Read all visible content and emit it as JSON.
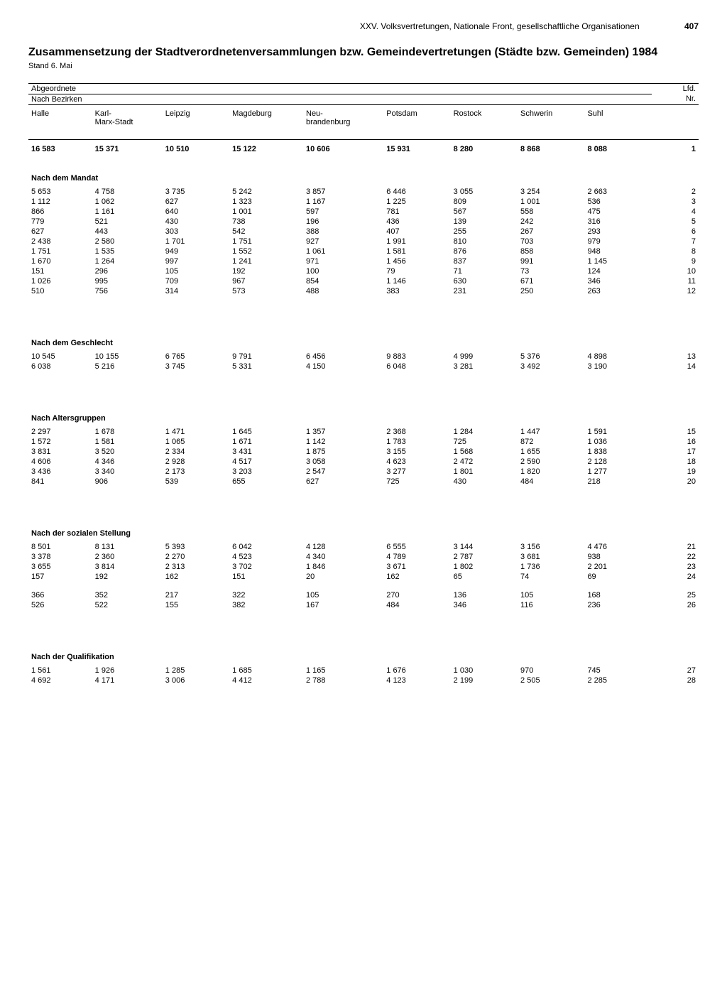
{
  "header": {
    "chapter": "XXV. Volksvertretungen, Nationale Front, gesellschaftliche Organisationen",
    "page": "407"
  },
  "title": "Zusammensetzung der Stadtverordnetenversammlungen bzw. Gemeindevertretungen (Städte bzw. Gemeinden) 1984",
  "subtitle": "Stand 6. Mai",
  "top_labels": {
    "abgeordnete": "Abgeordnete",
    "lfd": "Lfd.",
    "nr": "Nr.",
    "nach_bezirken": "Nach Bezirken"
  },
  "columns": [
    "Halle",
    "Karl-Marx-Stadt",
    "Leipzig",
    "Magdeburg",
    "Neu-brandenburg",
    "Potsdam",
    "Rostock",
    "Schwerin",
    "Suhl"
  ],
  "totals": {
    "values": [
      "16 583",
      "15 371",
      "10 510",
      "15 122",
      "10 606",
      "15 931",
      "8 280",
      "8 868",
      "8 088"
    ],
    "nr": "1"
  },
  "sections": [
    {
      "label": "Nach dem Mandat",
      "rows": [
        {
          "v": [
            "5 653",
            "4 758",
            "3 735",
            "5 242",
            "3 857",
            "6 446",
            "3 055",
            "3 254",
            "2 663"
          ],
          "nr": "2"
        },
        {
          "v": [
            "1 112",
            "1 062",
            "627",
            "1 323",
            "1 167",
            "1 225",
            "809",
            "1 001",
            "536"
          ],
          "nr": "3"
        },
        {
          "v": [
            "866",
            "1 161",
            "640",
            "1 001",
            "597",
            "781",
            "567",
            "558",
            "475"
          ],
          "nr": "4"
        },
        {
          "v": [
            "779",
            "521",
            "430",
            "738",
            "196",
            "436",
            "139",
            "242",
            "316"
          ],
          "nr": "5"
        },
        {
          "v": [
            "627",
            "443",
            "303",
            "542",
            "388",
            "407",
            "255",
            "267",
            "293"
          ],
          "nr": "6"
        },
        {
          "v": [
            "2 438",
            "2 580",
            "1 701",
            "1 751",
            "927",
            "1 991",
            "810",
            "703",
            "979"
          ],
          "nr": "7"
        },
        {
          "v": [
            "1 751",
            "1 535",
            "949",
            "1 552",
            "1 061",
            "1 581",
            "876",
            "858",
            "948"
          ],
          "nr": "8"
        },
        {
          "v": [
            "1 670",
            "1 264",
            "997",
            "1 241",
            "971",
            "1 456",
            "837",
            "991",
            "1 145"
          ],
          "nr": "9"
        },
        {
          "v": [
            "151",
            "296",
            "105",
            "192",
            "100",
            "79",
            "71",
            "73",
            "124"
          ],
          "nr": "10"
        },
        {
          "v": [
            "1 026",
            "995",
            "709",
            "967",
            "854",
            "1 146",
            "630",
            "671",
            "346"
          ],
          "nr": "11"
        },
        {
          "v": [
            "510",
            "756",
            "314",
            "573",
            "488",
            "383",
            "231",
            "250",
            "263"
          ],
          "nr": "12"
        }
      ]
    },
    {
      "label": "Nach dem Geschlecht",
      "rows": [
        {
          "v": [
            "10 545",
            "10 155",
            "6 765",
            "9 791",
            "6 456",
            "9 883",
            "4 999",
            "5 376",
            "4 898"
          ],
          "nr": "13"
        },
        {
          "v": [
            "6 038",
            "5 216",
            "3 745",
            "5 331",
            "4 150",
            "6 048",
            "3 281",
            "3 492",
            "3 190"
          ],
          "nr": "14"
        }
      ]
    },
    {
      "label": "Nach Altersgruppen",
      "rows": [
        {
          "v": [
            "2 297",
            "1 678",
            "1 471",
            "1 645",
            "1 357",
            "2 368",
            "1 284",
            "1 447",
            "1 591"
          ],
          "nr": "15"
        },
        {
          "v": [
            "1 572",
            "1 581",
            "1 065",
            "1 671",
            "1 142",
            "1 783",
            "725",
            "872",
            "1 036"
          ],
          "nr": "16"
        },
        {
          "v": [
            "3 831",
            "3 520",
            "2 334",
            "3 431",
            "1 875",
            "3 155",
            "1 568",
            "1 655",
            "1 838"
          ],
          "nr": "17"
        },
        {
          "v": [
            "4 606",
            "4 346",
            "2 928",
            "4 517",
            "3 058",
            "4 623",
            "2 472",
            "2 590",
            "2 128"
          ],
          "nr": "18"
        },
        {
          "v": [
            "3 436",
            "3 340",
            "2 173",
            "3 203",
            "2 547",
            "3 277",
            "1 801",
            "1 820",
            "1 277"
          ],
          "nr": "19"
        },
        {
          "v": [
            "841",
            "906",
            "539",
            "655",
            "627",
            "725",
            "430",
            "484",
            "218"
          ],
          "nr": "20"
        }
      ]
    },
    {
      "label": "Nach der sozialen Stellung",
      "rows": [
        {
          "v": [
            "8 501",
            "8 131",
            "5 393",
            "6 042",
            "4 128",
            "6 555",
            "3 144",
            "3 156",
            "4 476"
          ],
          "nr": "21"
        },
        {
          "v": [
            "3 378",
            "2 360",
            "2 270",
            "4 523",
            "4 340",
            "4 789",
            "2 787",
            "3 681",
            "938"
          ],
          "nr": "22"
        },
        {
          "v": [
            "3 655",
            "3 814",
            "2 313",
            "3 702",
            "1 846",
            "3 671",
            "1 802",
            "1 736",
            "2 201"
          ],
          "nr": "23"
        },
        {
          "v": [
            "157",
            "192",
            "162",
            "151",
            "20",
            "162",
            "65",
            "74",
            "69"
          ],
          "nr": "24"
        }
      ],
      "gap_rows": [
        {
          "v": [
            "366",
            "352",
            "217",
            "322",
            "105",
            "270",
            "136",
            "105",
            "168"
          ],
          "nr": "25"
        },
        {
          "v": [
            "526",
            "522",
            "155",
            "382",
            "167",
            "484",
            "346",
            "116",
            "236"
          ],
          "nr": "26"
        }
      ]
    },
    {
      "label": "Nach der Qualifikation",
      "rows": [
        {
          "v": [
            "1 561",
            "1 926",
            "1 285",
            "1 685",
            "1 165",
            "1 676",
            "1 030",
            "970",
            "745"
          ],
          "nr": "27"
        },
        {
          "v": [
            "4 692",
            "4 171",
            "3 006",
            "4 412",
            "2 788",
            "4 123",
            "2 199",
            "2 505",
            "2 285"
          ],
          "nr": "28"
        }
      ]
    }
  ]
}
